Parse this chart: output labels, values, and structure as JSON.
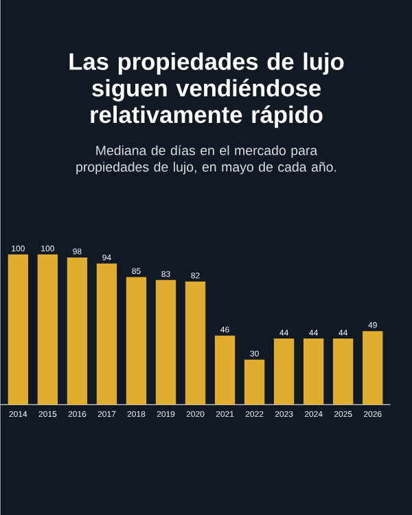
{
  "chart_data": {
    "type": "bar",
    "title": "Las propiedades de lujo siguen vendiéndose relativamente rápido",
    "subtitle": "Mediana de días en el mercado para propiedades de lujo, en mayo de cada año.",
    "categories": [
      "2014",
      "2015",
      "2016",
      "2017",
      "2018",
      "2019",
      "2020",
      "2021",
      "2022",
      "2023",
      "2024",
      "2025",
      "2026"
    ],
    "values": [
      100,
      100,
      98,
      94,
      85,
      83,
      82,
      46,
      30,
      44,
      44,
      44,
      49
    ],
    "color": "#e0ad2e",
    "data_labels": true,
    "ylim": [
      0,
      100
    ]
  }
}
